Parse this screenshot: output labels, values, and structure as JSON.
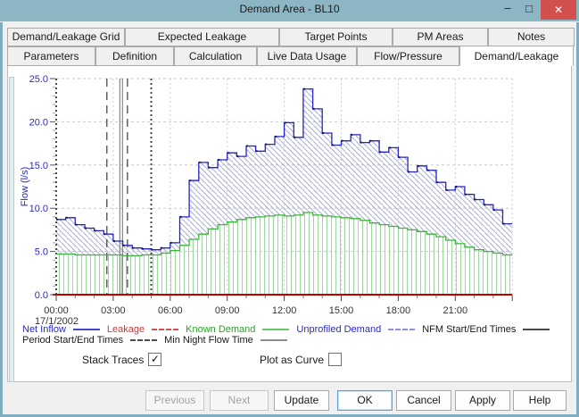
{
  "window": {
    "title": "Demand Area - BL10",
    "minimize_glyph": "–",
    "maximize_glyph": "□",
    "close_glyph": "✕"
  },
  "tabs": {
    "row1": [
      "Demand/Leakage Grid",
      "Expected Leakage",
      "Target Points",
      "PM Areas",
      "Notes"
    ],
    "row2": [
      "Parameters",
      "Definition",
      "Calculation",
      "Live Data Usage",
      "Flow/Pressure",
      "Demand/Leakage"
    ],
    "selected": "Demand/Leakage"
  },
  "chart_data": {
    "type": "area",
    "stacked": true,
    "title": "",
    "ylabel": "Flow (l/s)",
    "ylim": [
      0,
      25
    ],
    "yticks": [
      "0.0",
      "5.0",
      "10.0",
      "15.0",
      "20.0",
      "25.0"
    ],
    "xticks": [
      "00:00",
      "03:00",
      "06:00",
      "09:00",
      "12:00",
      "15:00",
      "18:00",
      "21:00"
    ],
    "date_label": "17/1/2002",
    "x_start": "00:00",
    "x_step_minutes": 30,
    "grid": true,
    "legend_position": "bottom",
    "series": [
      {
        "name": "Net Inflow",
        "color": "#2828c8",
        "style": "step-line, diagonal blue hatch fill above Known Demand",
        "values": [
          8.7,
          8.9,
          8.1,
          7.7,
          7.4,
          7.0,
          6.2,
          5.7,
          5.4,
          5.3,
          5.2,
          5.4,
          6.0,
          9.0,
          13.2,
          15.3,
          14.7,
          15.6,
          16.4,
          16.0,
          17.2,
          16.6,
          17.4,
          18.3,
          19.9,
          18.2,
          23.8,
          21.5,
          18.7,
          17.3,
          17.8,
          18.5,
          17.6,
          17.8,
          16.5,
          17.0,
          15.9,
          14.2,
          14.9,
          14.4,
          13.0,
          12.1,
          12.5,
          11.6,
          11.0,
          10.4,
          9.8,
          8.2
        ]
      },
      {
        "name": "Known Demand",
        "color": "#3cb43c",
        "style": "step-line, vertical green hatch fill to baseline",
        "values": [
          4.7,
          4.7,
          4.6,
          4.6,
          4.6,
          4.6,
          4.6,
          4.5,
          4.5,
          4.6,
          4.6,
          4.8,
          5.1,
          5.7,
          6.4,
          7.0,
          7.6,
          8.1,
          8.4,
          8.7,
          8.9,
          9.0,
          9.1,
          9.2,
          9.1,
          9.2,
          9.5,
          9.2,
          9.1,
          9.0,
          8.9,
          8.8,
          8.6,
          8.3,
          8.1,
          7.9,
          7.7,
          7.5,
          7.3,
          7.0,
          6.7,
          6.3,
          5.9,
          5.5,
          5.2,
          5.0,
          4.8,
          4.6
        ]
      },
      {
        "name": "Unprofiled Demand",
        "color": "#2828c8",
        "style": "hatched band between Known Demand and Net Inflow (stacked)"
      },
      {
        "name": "Leakage",
        "color": "#c00000",
        "style": "flat line on baseline",
        "constant": 0
      }
    ],
    "markers": {
      "nfm_start_end_times": [
        "00:00",
        "05:00"
      ],
      "period_start_end_times": [
        "02:40",
        "03:45"
      ],
      "min_night_flow_time": "03:25"
    }
  },
  "legend": {
    "row1": [
      {
        "label": "Net Inflow",
        "color": "#2828c8",
        "line": "solid blue"
      },
      {
        "label": "Leakage",
        "color": "#c83c3c",
        "line": "dashed red"
      },
      {
        "label": "Known Demand",
        "color": "#2ca02c",
        "line": "solid green"
      },
      {
        "label": "Unprofiled Demand",
        "color": "#2828c8",
        "line": "dashed blue"
      },
      {
        "label": "NFM Start/End Times",
        "color": "#1a1a1a",
        "line": "solid dark"
      }
    ],
    "row2": [
      {
        "label": "Period Start/End Times",
        "color": "#1a1a1a",
        "line": "dashed dark"
      },
      {
        "label": "Min Night Flow Time",
        "color": "#1a1a1a",
        "line": "solid gray"
      }
    ]
  },
  "controls": {
    "stack_traces": {
      "label": "Stack Traces",
      "checked": true,
      "check_glyph": "✓"
    },
    "plot_as_curve": {
      "label": "Plot as Curve",
      "checked": false,
      "check_glyph": "✓"
    }
  },
  "buttons": [
    {
      "label": "Previous",
      "enabled": false
    },
    {
      "label": "Next",
      "enabled": false
    },
    {
      "label": "Update",
      "enabled": true
    },
    {
      "label": "OK",
      "enabled": true,
      "default": true
    },
    {
      "label": "Cancel",
      "enabled": true
    },
    {
      "label": "Apply",
      "enabled": true
    },
    {
      "label": "Help",
      "enabled": true
    }
  ]
}
